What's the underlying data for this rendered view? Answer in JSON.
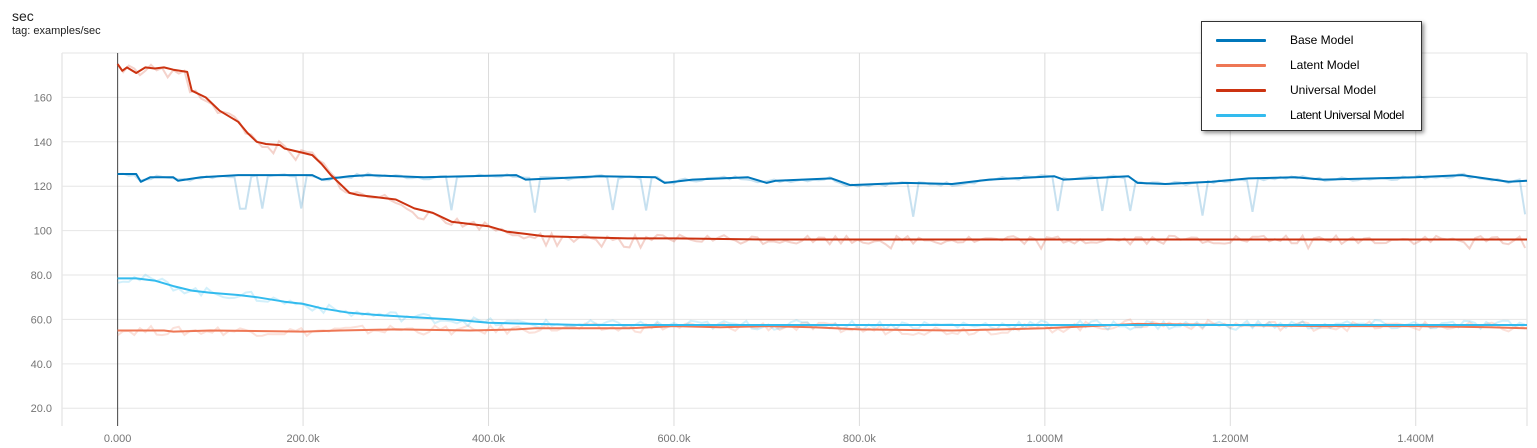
{
  "header": {
    "title": "sec",
    "subtitle": "tag: examples/sec"
  },
  "legend": {
    "placement": "top-right",
    "items": [
      {
        "label": "Base Model",
        "color": "#0077bb"
      },
      {
        "label": "Latent Model",
        "color": "#ee7755"
      },
      {
        "label": "Universal Model",
        "color": "#cc3311"
      },
      {
        "label": "Latent Universal Model",
        "color": "#33bbee"
      }
    ]
  },
  "chart_data": {
    "type": "line",
    "title": "sec",
    "subtitle": "tag: examples/sec",
    "xlabel": "",
    "ylabel": "",
    "xlim": [
      -60000,
      1520000
    ],
    "ylim": [
      12,
      180
    ],
    "x_ticks": [
      0,
      200000,
      400000,
      600000,
      800000,
      1000000,
      1200000,
      1400000
    ],
    "x_tick_labels": [
      "0.000",
      "200.0k",
      "400.0k",
      "600.0k",
      "800.0k",
      "1.000M",
      "1.200M",
      "1.400M"
    ],
    "y_ticks": [
      20,
      40,
      60,
      80,
      100,
      120,
      140,
      160
    ],
    "y_tick_labels": [
      "20.0",
      "40.0",
      "60.0",
      "80.0",
      "100",
      "120",
      "140",
      "160"
    ],
    "grid": true,
    "series": [
      {
        "name": "Base Model",
        "color": "#0077bb",
        "x": [
          0,
          20000,
          25000,
          35000,
          60000,
          65000,
          90000,
          130000,
          210000,
          220000,
          250000,
          270000,
          330000,
          430000,
          440000,
          520000,
          580000,
          590000,
          620000,
          680000,
          700000,
          710000,
          770000,
          790000,
          850000,
          900000,
          940000,
          1010000,
          1020000,
          1090000,
          1100000,
          1130000,
          1180000,
          1220000,
          1270000,
          1300000,
          1400000,
          1450000,
          1500000,
          1520000
        ],
        "y": [
          125.5,
          125.5,
          122,
          124,
          124,
          122.5,
          124,
          125,
          125,
          123,
          124.5,
          125,
          124,
          125,
          123,
          124.5,
          124,
          121.5,
          123,
          124,
          121.5,
          122.5,
          123.5,
          120.5,
          121.5,
          121,
          123,
          124.5,
          123,
          124.5,
          121.5,
          121,
          122,
          123.5,
          124,
          123,
          124,
          125,
          122,
          122.5
        ]
      },
      {
        "name": "Latent Model",
        "color": "#ee7755",
        "x": [
          0,
          20000,
          50000,
          60000,
          100000,
          200000,
          240000,
          300000,
          380000,
          430000,
          450000,
          550000,
          600000,
          650000,
          700000,
          750000,
          800000,
          900000,
          1000000,
          1050000,
          1100000,
          1200000,
          1300000,
          1400000,
          1480000,
          1520000
        ],
        "y": [
          55,
          55,
          55,
          54.5,
          55,
          54.5,
          55,
          55.5,
          55,
          55.5,
          56,
          56,
          57,
          56.5,
          57,
          56.5,
          55.5,
          55,
          56,
          57,
          58,
          57.5,
          57,
          57,
          56.5,
          56
        ]
      },
      {
        "name": "Universal Model",
        "color": "#cc3311",
        "x": [
          0,
          5000,
          10000,
          20000,
          30000,
          40000,
          50000,
          60000,
          75000,
          80000,
          95000,
          110000,
          130000,
          140000,
          150000,
          160000,
          175000,
          180000,
          200000,
          210000,
          220000,
          230000,
          240000,
          250000,
          260000,
          280000,
          300000,
          320000,
          340000,
          360000,
          380000,
          400000,
          420000,
          440000,
          460000,
          500000,
          550000,
          600000,
          700000,
          800000,
          900000,
          1000000,
          1100000,
          1200000,
          1300000,
          1400000,
          1520000
        ],
        "y": [
          175,
          172,
          173.5,
          171,
          173.5,
          173,
          173.5,
          172.5,
          171.5,
          163,
          160,
          154,
          149,
          144,
          140,
          139,
          138.5,
          137,
          135,
          134,
          130,
          125,
          121,
          117,
          116,
          115,
          114,
          110,
          108,
          104,
          103,
          102,
          99.5,
          98.5,
          97.5,
          97,
          96.5,
          96.5,
          96,
          96,
          96,
          96,
          96,
          96,
          96,
          96,
          96
        ]
      },
      {
        "name": "Latent Universal Model",
        "color": "#33bbee",
        "x": [
          0,
          10000,
          20000,
          30000,
          40000,
          60000,
          80000,
          100000,
          130000,
          150000,
          180000,
          200000,
          220000,
          250000,
          280000,
          320000,
          360000,
          400000,
          450000,
          500000,
          600000,
          700000,
          800000,
          900000,
          1000000,
          1100000,
          1200000,
          1300000,
          1400000,
          1520000
        ],
        "y": [
          78.5,
          78.5,
          78.5,
          78,
          77.5,
          75,
          73,
          72,
          71,
          70,
          68,
          67,
          65,
          63,
          62,
          61,
          60,
          58.5,
          58,
          57.5,
          57.5,
          57.5,
          57.5,
          57.5,
          57.5,
          57.5,
          57.5,
          57.5,
          57.5,
          57.5
        ]
      }
    ]
  }
}
